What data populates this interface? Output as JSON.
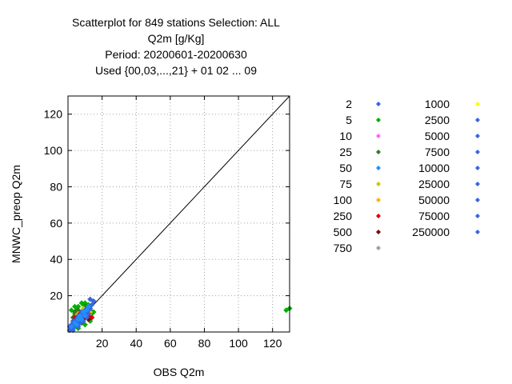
{
  "chart_data": {
    "type": "scatter",
    "title_lines": [
      "Scatterplot for  849 stations Selection: ALL",
      "Q2m [g/Kg]",
      "Period: 20200601-20200630",
      "Used {00,03,...,21} + 01 02 ... 09"
    ],
    "xlabel": "OBS Q2m",
    "ylabel": "MNWC_preop Q2m",
    "xlim": [
      0,
      130
    ],
    "ylim": [
      0,
      130
    ],
    "xticks": [
      20,
      40,
      60,
      80,
      100,
      120
    ],
    "yticks": [
      20,
      40,
      60,
      80,
      100,
      120
    ],
    "grid": true,
    "diagonal": [
      [
        0,
        0
      ],
      [
        130,
        130
      ]
    ],
    "legend_placement": "right",
    "series": [
      {
        "name": "2",
        "color": "#3a64e0"
      },
      {
        "name": "5",
        "color": "#00b000"
      },
      {
        "name": "10",
        "color": "#ff66ff"
      },
      {
        "name": "25",
        "color": "#2e7a20"
      },
      {
        "name": "50",
        "color": "#1e90ff"
      },
      {
        "name": "75",
        "color": "#c8c800"
      },
      {
        "name": "100",
        "color": "#ffb400"
      },
      {
        "name": "250",
        "color": "#e00000"
      },
      {
        "name": "500",
        "color": "#800000"
      },
      {
        "name": "750",
        "color": "#a0a0a0"
      },
      {
        "name": "1000",
        "color": "#ffff00"
      },
      {
        "name": "2500",
        "color": "#3a64e0"
      },
      {
        "name": "5000",
        "color": "#3a64e0"
      },
      {
        "name": "7500",
        "color": "#3a64e0"
      },
      {
        "name": "10000",
        "color": "#3a64e0"
      },
      {
        "name": "25000",
        "color": "#3a64e0"
      },
      {
        "name": "50000",
        "color": "#3a64e0"
      },
      {
        "name": "75000",
        "color": "#3a64e0"
      },
      {
        "name": "250000",
        "color": "#3a64e0"
      }
    ],
    "clusters": [
      {
        "series": "5",
        "points": [
          [
            2,
            3
          ],
          [
            4,
            10
          ],
          [
            6,
            14
          ],
          [
            8,
            16
          ],
          [
            10,
            16
          ],
          [
            12,
            13
          ],
          [
            14,
            10
          ],
          [
            13,
            6
          ],
          [
            10,
            4
          ],
          [
            6,
            2
          ],
          [
            3,
            6
          ],
          [
            5,
            12
          ],
          [
            9,
            15
          ],
          [
            11,
            9
          ],
          [
            2,
            12
          ],
          [
            4,
            14
          ],
          [
            7,
            11
          ],
          [
            15,
            11
          ],
          [
            12,
            15
          ],
          [
            128,
            12
          ],
          [
            130,
            13
          ]
        ]
      },
      {
        "series": "25",
        "points": [
          [
            3,
            8
          ],
          [
            6,
            12
          ],
          [
            10,
            14
          ],
          [
            12,
            8
          ],
          [
            8,
            5
          ],
          [
            4,
            11
          ],
          [
            11,
            12
          ],
          [
            13,
            12
          ]
        ]
      },
      {
        "series": "75",
        "points": [
          [
            5,
            9
          ],
          [
            9,
            13
          ],
          [
            11,
            10
          ],
          [
            7,
            6
          ],
          [
            13,
            9
          ]
        ]
      },
      {
        "series": "100",
        "points": [
          [
            6,
            10
          ],
          [
            10,
            11
          ],
          [
            12,
            11
          ],
          [
            8,
            8
          ],
          [
            13,
            11
          ],
          [
            9,
            7
          ]
        ]
      },
      {
        "series": "250",
        "points": [
          [
            4,
            8
          ],
          [
            7,
            10
          ],
          [
            9,
            10
          ],
          [
            11,
            9
          ],
          [
            12,
            10
          ],
          [
            6,
            5
          ],
          [
            13,
            8
          ],
          [
            14,
            8
          ]
        ]
      },
      {
        "series": "500",
        "points": [
          [
            5,
            7
          ],
          [
            8,
            9
          ],
          [
            10,
            8
          ],
          [
            12,
            7
          ]
        ]
      },
      {
        "series": "10",
        "points": [
          [
            3,
            4
          ],
          [
            6,
            8
          ],
          [
            9,
            9
          ]
        ]
      },
      {
        "series": "2",
        "points": [
          [
            1,
            1
          ],
          [
            2,
            2
          ],
          [
            3,
            3
          ],
          [
            4,
            4
          ],
          [
            5,
            5
          ],
          [
            6,
            6
          ],
          [
            7,
            7
          ],
          [
            8,
            8
          ],
          [
            9,
            9
          ],
          [
            10,
            10
          ],
          [
            11,
            11
          ],
          [
            12,
            12
          ],
          [
            13,
            13
          ],
          [
            14,
            15
          ],
          [
            15,
            17
          ],
          [
            13,
            18
          ],
          [
            2,
            4
          ],
          [
            4,
            3
          ],
          [
            5,
            7
          ],
          [
            7,
            5
          ],
          [
            6,
            9
          ],
          [
            9,
            6
          ],
          [
            8,
            11
          ],
          [
            11,
            8
          ],
          [
            10,
            12
          ],
          [
            12,
            10
          ],
          [
            3,
            6
          ],
          [
            6,
            3
          ],
          [
            1,
            3
          ],
          [
            3,
            1
          ]
        ]
      },
      {
        "series": "50",
        "points": [
          [
            2,
            3
          ],
          [
            4,
            5
          ],
          [
            6,
            7
          ],
          [
            8,
            7
          ],
          [
            10,
            9
          ],
          [
            11,
            12
          ],
          [
            12,
            14
          ],
          [
            7,
            9
          ],
          [
            9,
            11
          ],
          [
            5,
            4
          ]
        ]
      }
    ]
  }
}
